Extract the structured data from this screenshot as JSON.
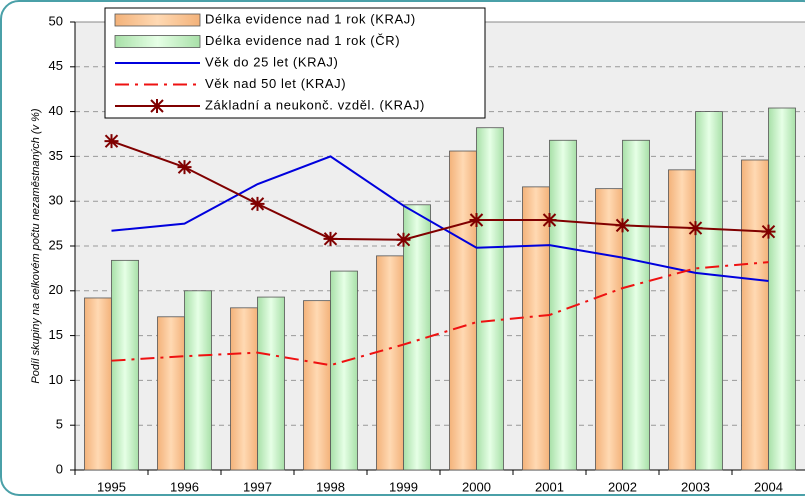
{
  "chart_data": {
    "type": "bar-line",
    "y_label": "Podíl skupiny na celkovém počtu nezaměstnaných (v %)",
    "categories": [
      "1995",
      "1996",
      "1997",
      "1998",
      "1999",
      "2000",
      "2001",
      "2002",
      "2003",
      "2004"
    ],
    "series": [
      {
        "name": "Délka evidence nad 1 rok (KRAJ)",
        "type": "bar",
        "color": "#ffcc99",
        "values": [
          19.2,
          17.1,
          18.1,
          18.9,
          23.9,
          35.6,
          31.6,
          31.4,
          33.5,
          34.6
        ]
      },
      {
        "name": "Délka evidence nad 1 rok (ČR)",
        "type": "bar",
        "color": "#ccffcc",
        "values": [
          23.4,
          20.0,
          19.3,
          22.2,
          29.6,
          38.2,
          36.8,
          36.8,
          40.0,
          40.4
        ]
      },
      {
        "name": "Věk do 25 let (KRAJ)",
        "type": "line",
        "color": "#0000dd",
        "values": [
          26.7,
          27.5,
          31.9,
          35.0,
          29.5,
          24.8,
          25.1,
          23.7,
          22.0,
          21.1
        ]
      },
      {
        "name": "Věk nad 50 let (KRAJ)",
        "type": "line",
        "color": "#ee1111",
        "dash": true,
        "values": [
          12.2,
          12.7,
          13.1,
          11.7,
          14.0,
          16.5,
          17.3,
          20.3,
          22.5,
          23.2
        ]
      },
      {
        "name": "Základní a neukonč. vzděl. (KRAJ)",
        "type": "line",
        "color": "#800000",
        "marker": "star",
        "values": [
          36.7,
          33.8,
          29.7,
          25.8,
          25.7,
          27.9,
          27.9,
          27.3,
          27.0,
          26.6
        ]
      }
    ],
    "ylim": [
      0,
      50
    ],
    "yticks": [
      0,
      5,
      10,
      15,
      20,
      25,
      30,
      35,
      40,
      45,
      50
    ],
    "grid": true
  }
}
